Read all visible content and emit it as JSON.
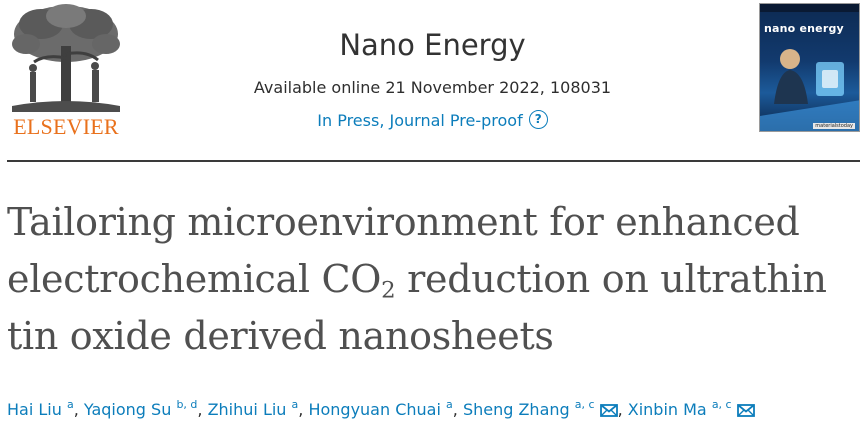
{
  "publisher": {
    "logo_text": "ELSEVIER",
    "logo_icon": "elsevier-tree-icon"
  },
  "journal": {
    "title": "Nano Energy",
    "available": "Available online 21 November 2022, 108031",
    "status": "In Press, Journal Pre-proof",
    "help_icon": "?",
    "cover_title": "nano energy",
    "cover_footer": "materialstoday"
  },
  "article": {
    "title_line1": "Tailoring microenvironment for enhanced",
    "title_line2_pre": "electrochemical CO",
    "title_line2_sub": "2",
    "title_line2_post": " reduction on ultrathin",
    "title_line3": "tin oxide derived nanosheets"
  },
  "authors": [
    {
      "name": "Hai Liu",
      "aff": "a",
      "email": false
    },
    {
      "name": "Yaqiong Su",
      "aff": "b, d",
      "email": false
    },
    {
      "name": "Zhihui Liu",
      "aff": "a",
      "email": false
    },
    {
      "name": "Hongyuan Chuai",
      "aff": "a",
      "email": false
    },
    {
      "name": "Sheng Zhang",
      "aff": "a, c",
      "email": true
    },
    {
      "name": "Xinbin Ma",
      "aff": "a, c",
      "email": true
    }
  ],
  "colors": {
    "link": "#0c7dbb",
    "elsevier_orange": "#e9711c",
    "title_gray": "#505050"
  }
}
